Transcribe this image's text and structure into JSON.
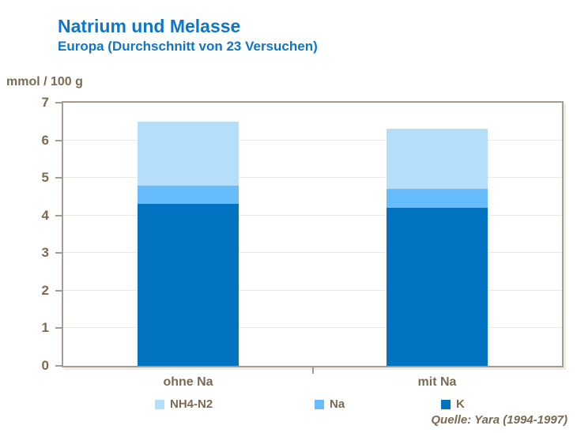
{
  "title": "Natrium und Melasse",
  "subtitle": "Europa (Durchschnitt von 23 Versuchen)",
  "y_axis_unit": "mmol / 100 g",
  "source": "Quelle:  Yara (1994-1997)",
  "colors": {
    "title_blue": "#0d76c8",
    "axis_text_brown": "#7a6a54",
    "axis_line": "#a59c90",
    "gridline": "#eceae6"
  },
  "chart_data": {
    "type": "bar",
    "stacked": true,
    "categories": [
      "ohne Na",
      "mit Na"
    ],
    "series": [
      {
        "name": "K",
        "color": "#0273c0",
        "values": [
          4.3,
          4.2
        ]
      },
      {
        "name": "Na",
        "color": "#67bcfb",
        "values": [
          0.5,
          0.5
        ]
      },
      {
        "name": "NH4-N2",
        "color": "#b5defb",
        "values": [
          1.7,
          1.6
        ]
      }
    ],
    "stack_totals": [
      6.5,
      6.3
    ],
    "legend_order": [
      "NH4-N2",
      "Na",
      "K"
    ],
    "legend_position": "bottom",
    "ylabel": "mmol / 100 g",
    "ylim": [
      0,
      7
    ],
    "y_ticks": [
      0,
      1,
      2,
      3,
      4,
      5,
      6,
      7
    ],
    "grid": true
  }
}
